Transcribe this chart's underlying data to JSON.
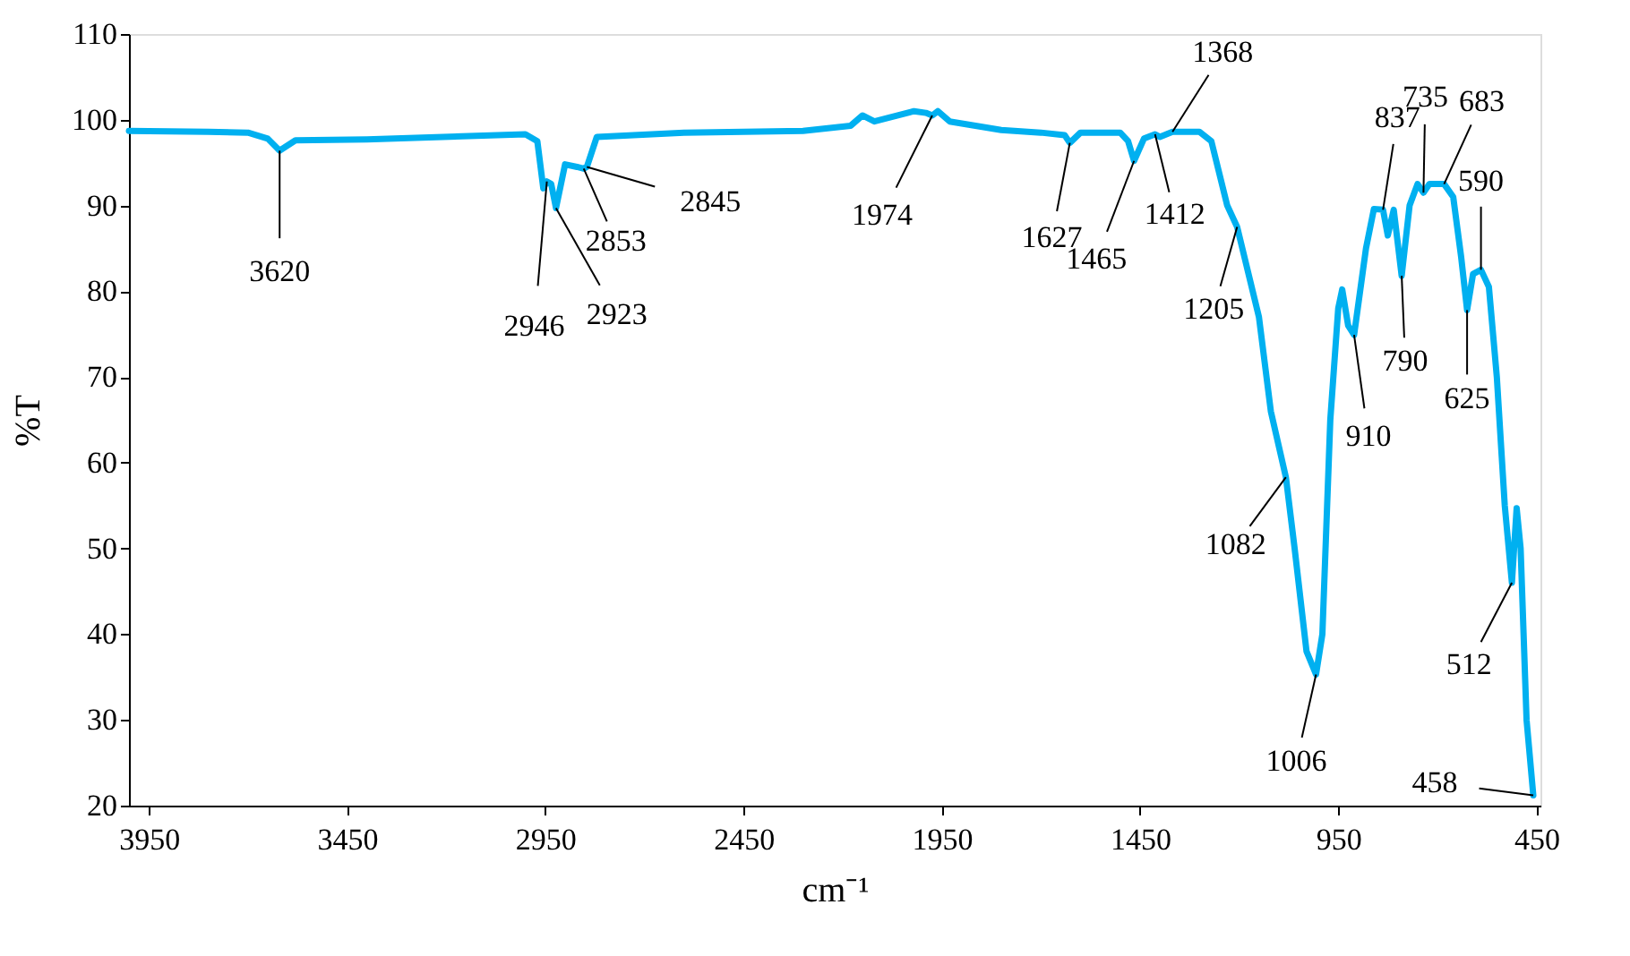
{
  "chart_data": {
    "type": "line",
    "xlabel": "cm⁻¹",
    "ylabel": "%T",
    "xlim": [
      4000,
      440
    ],
    "xticks": [
      3950,
      3450,
      2950,
      2450,
      1950,
      1450,
      950,
      450
    ],
    "ylim": [
      20,
      110
    ],
    "yticks": [
      20,
      30,
      40,
      50,
      60,
      70,
      80,
      90,
      100,
      110
    ],
    "grid": false,
    "marker": "none",
    "line_style": "solid",
    "x": [
      4000,
      3800,
      3700,
      3650,
      3620,
      3580,
      3400,
      3000,
      2970,
      2955,
      2946,
      2935,
      2923,
      2900,
      2870,
      2853,
      2845,
      2820,
      2600,
      2300,
      2180,
      2150,
      2120,
      2020,
      1990,
      1974,
      1960,
      1930,
      1800,
      1700,
      1640,
      1627,
      1600,
      1500,
      1480,
      1465,
      1440,
      1412,
      1400,
      1368,
      1300,
      1270,
      1230,
      1205,
      1150,
      1120,
      1082,
      1060,
      1030,
      1006,
      990,
      970,
      950,
      940,
      925,
      910,
      880,
      860,
      837,
      825,
      810,
      790,
      770,
      750,
      735,
      720,
      683,
      660,
      640,
      625,
      610,
      590,
      570,
      550,
      530,
      512,
      500,
      490,
      475,
      458
    ],
    "series": [
      {
        "color": "#00b0f0",
        "values": [
          98.7,
          98.6,
          98.5,
          97.8,
          96.4,
          97.6,
          97.7,
          98.3,
          97.5,
          92,
          92.8,
          92.5,
          89.7,
          94.8,
          94.5,
          94.3,
          94.5,
          98,
          98.5,
          98.7,
          99.3,
          100.5,
          99.8,
          101,
          100.8,
          100.5,
          101,
          99.8,
          98.8,
          98.5,
          98.2,
          97.3,
          98.5,
          98.5,
          97.5,
          95.2,
          97.8,
          98.3,
          98,
          98.6,
          98.6,
          97.5,
          90,
          87.5,
          77,
          66,
          58.3,
          50,
          38,
          35.3,
          40,
          65,
          78,
          80.2,
          76,
          74.9,
          85,
          89.6,
          89.5,
          86.5,
          89.5,
          81.8,
          90,
          92.5,
          91.5,
          92.5,
          92.5,
          91,
          84,
          77.8,
          82,
          82.5,
          80.5,
          70,
          55,
          46,
          54.7,
          50,
          30,
          21.2
        ]
      }
    ],
    "annotations": [
      {
        "text": "3620",
        "x": 3620,
        "y": 96.4
      },
      {
        "text": "2946",
        "x": 2946,
        "y": 92.8
      },
      {
        "text": "2923",
        "x": 2923,
        "y": 89.7
      },
      {
        "text": "2853",
        "x": 2853,
        "y": 94.3
      },
      {
        "text": "2845",
        "x": 2845,
        "y": 94.5
      },
      {
        "text": "1974",
        "x": 1974,
        "y": 100.5
      },
      {
        "text": "1627",
        "x": 1627,
        "y": 97.3
      },
      {
        "text": "1465",
        "x": 1465,
        "y": 95.2
      },
      {
        "text": "1412",
        "x": 1412,
        "y": 98.3
      },
      {
        "text": "1368",
        "x": 1368,
        "y": 98.6
      },
      {
        "text": "1205",
        "x": 1205,
        "y": 87.5
      },
      {
        "text": "1082",
        "x": 1082,
        "y": 58.3
      },
      {
        "text": "1006",
        "x": 1006,
        "y": 35.3
      },
      {
        "text": "910",
        "x": 910,
        "y": 74.9
      },
      {
        "text": "837",
        "x": 837,
        "y": 89.5
      },
      {
        "text": "790",
        "x": 790,
        "y": 81.8
      },
      {
        "text": "735",
        "x": 735,
        "y": 91.5
      },
      {
        "text": "683",
        "x": 683,
        "y": 92.5
      },
      {
        "text": "625",
        "x": 625,
        "y": 77.8
      },
      {
        "text": "590",
        "x": 590,
        "y": 82.5
      },
      {
        "text": "512",
        "x": 512,
        "y": 46
      },
      {
        "text": "458",
        "x": 458,
        "y": 21.2
      }
    ]
  }
}
